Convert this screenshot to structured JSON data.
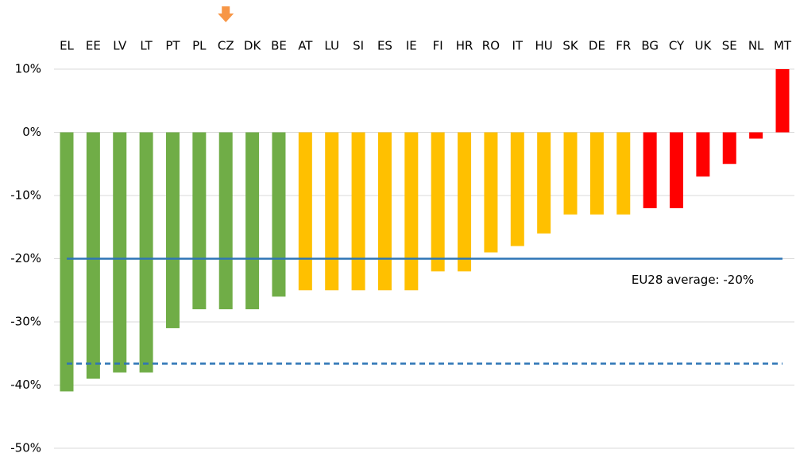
{
  "chart_data": {
    "type": "bar",
    "categories": [
      "EL",
      "EE",
      "LV",
      "LT",
      "PT",
      "PL",
      "CZ",
      "DK",
      "BE",
      "AT",
      "LU",
      "SI",
      "ES",
      "IE",
      "FI",
      "HR",
      "RO",
      "IT",
      "HU",
      "SK",
      "DE",
      "FR",
      "BG",
      "CY",
      "UK",
      "SE",
      "NL",
      "MT"
    ],
    "values": [
      -41,
      -39,
      -38,
      -38,
      -31,
      -28,
      -28,
      -28,
      -26,
      -25,
      -25,
      -25,
      -25,
      -25,
      -22,
      -22,
      -19,
      -18,
      -16,
      -13,
      -13,
      -13,
      -12,
      -12,
      -7,
      -5,
      -1,
      10
    ],
    "colors": [
      "#70ad47",
      "#70ad47",
      "#70ad47",
      "#70ad47",
      "#70ad47",
      "#70ad47",
      "#70ad47",
      "#70ad47",
      "#70ad47",
      "#ffc000",
      "#ffc000",
      "#ffc000",
      "#ffc000",
      "#ffc000",
      "#ffc000",
      "#ffc000",
      "#ffc000",
      "#ffc000",
      "#ffc000",
      "#ffc000",
      "#ffc000",
      "#ffc000",
      "#ff0000",
      "#ff0000",
      "#ff0000",
      "#ff0000",
      "#ff0000",
      "#ff0000"
    ],
    "ylim": [
      -50,
      10
    ],
    "yticks": [
      {
        "value": 10,
        "label": "10%"
      },
      {
        "value": 0,
        "label": "0%"
      },
      {
        "value": -10,
        "label": "-10%"
      },
      {
        "value": -20,
        "label": "-20%"
      },
      {
        "value": -30,
        "label": "-30%"
      },
      {
        "value": -40,
        "label": "-40%"
      },
      {
        "value": -50,
        "label": "-50%"
      }
    ],
    "grid": true,
    "reference_lines": [
      {
        "value": -20,
        "label": "EU28 average: -20%",
        "style": "solid",
        "color": "#2e75b6"
      },
      {
        "value": -36.6,
        "style": "dashed",
        "color": "#2e75b6"
      }
    ],
    "highlight": "CZ",
    "highlight_color": "#f79646"
  }
}
